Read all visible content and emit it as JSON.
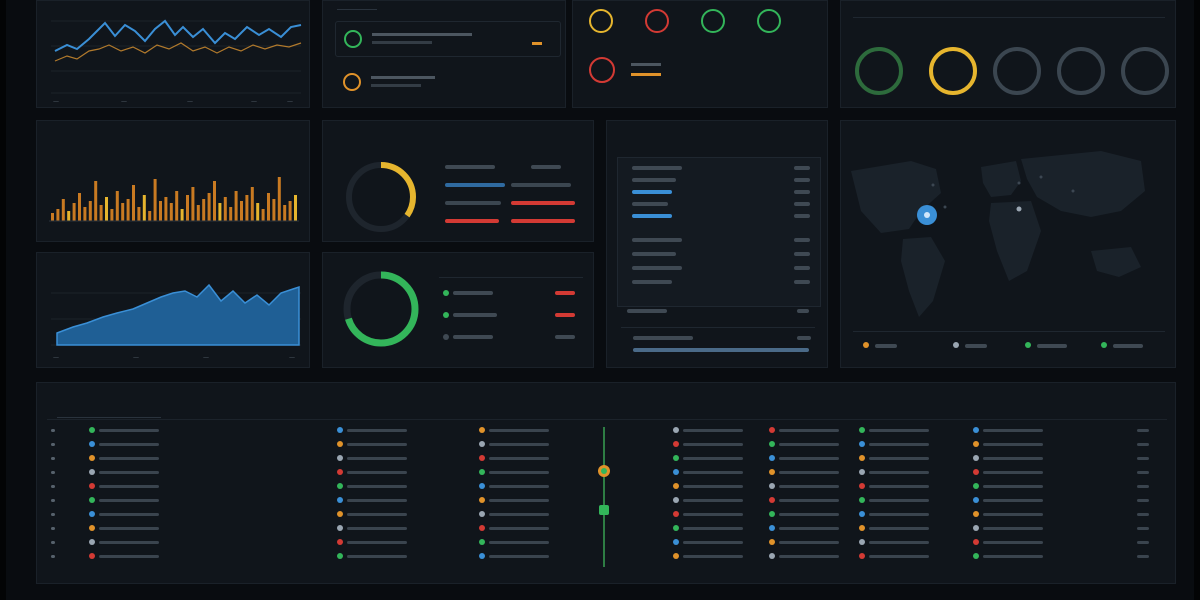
{
  "colors": {
    "accent_blue": "#3a8fd6",
    "accent_orange": "#e0922a",
    "accent_yellow": "#e6b52e",
    "accent_green": "#33b55a",
    "accent_red": "#d33a34",
    "panel_bg": "#10151b"
  },
  "panels": {
    "bar_chart_title": "",
    "area_chart_title": "",
    "donut1_title": "",
    "donut2_title": "",
    "list_title": "",
    "map_title": "",
    "table_title": ""
  },
  "donut_top_value": "",
  "donut_bottom_value": "",
  "icons": [
    "green-status-icon",
    "orange-status-icon",
    "yellow-ring-icon",
    "red-ring-icon",
    "green-ring-icon",
    "green-ring-icon-2",
    "red-alert-icon"
  ]
}
